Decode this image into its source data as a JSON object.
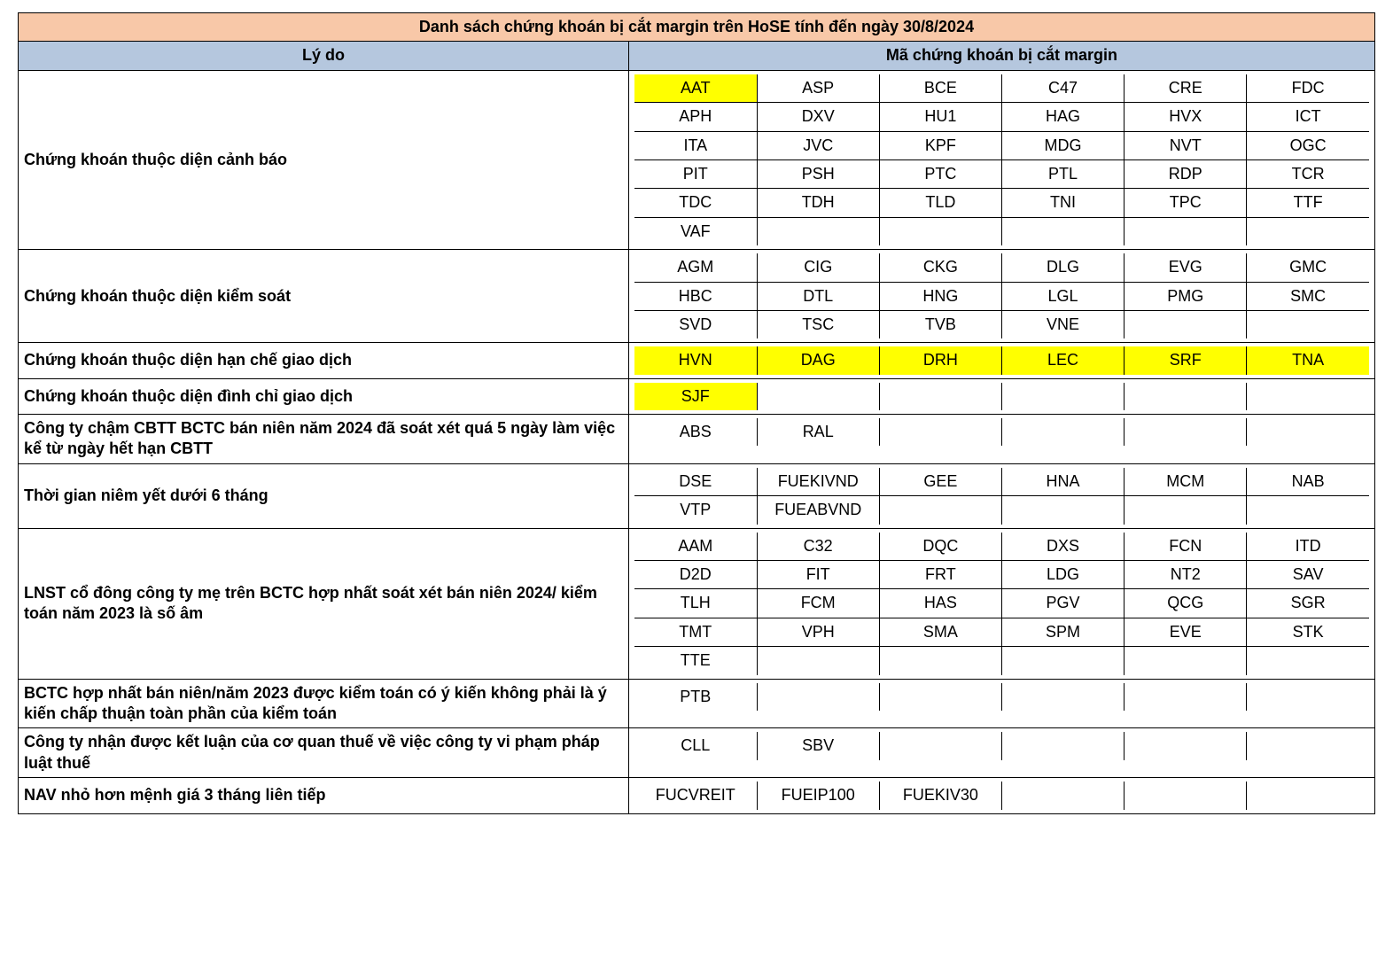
{
  "title": "Danh sách chứng khoán bị cắt margin trên HoSE tính đến ngày 30/8/2024",
  "headers": {
    "reason": "Lý do",
    "codes": "Mã chứng khoán bị cắt margin"
  },
  "colors": {
    "title_bg": "#f8c8a8",
    "header_bg": "#b5c7de",
    "highlight_bg": "#ffff00",
    "border": "#000000",
    "text": "#000000",
    "page_bg": "#ffffff"
  },
  "layout": {
    "columns_per_row": 6,
    "reason_col_width_pct": 45,
    "font_family": "Arial",
    "title_fontsize_pt": 22,
    "header_fontsize_pt": 20,
    "body_fontsize_pt": 18,
    "reason_fontweight": "bold",
    "code_fontweight": "normal",
    "highlight_fontweight": "bold"
  },
  "sections": [
    {
      "reason": "Chứng khoán thuộc diện cảnh báo",
      "rows": [
        [
          {
            "code": "AAT",
            "hl": true
          },
          {
            "code": "ASP"
          },
          {
            "code": "BCE"
          },
          {
            "code": "C47"
          },
          {
            "code": "CRE"
          },
          {
            "code": "FDC"
          }
        ],
        [
          {
            "code": "APH"
          },
          {
            "code": "DXV"
          },
          {
            "code": "HU1"
          },
          {
            "code": "HAG"
          },
          {
            "code": "HVX"
          },
          {
            "code": "ICT"
          }
        ],
        [
          {
            "code": "ITA"
          },
          {
            "code": "JVC"
          },
          {
            "code": "KPF"
          },
          {
            "code": "MDG"
          },
          {
            "code": "NVT"
          },
          {
            "code": "OGC"
          }
        ],
        [
          {
            "code": "PIT"
          },
          {
            "code": "PSH"
          },
          {
            "code": "PTC"
          },
          {
            "code": "PTL"
          },
          {
            "code": "RDP"
          },
          {
            "code": "TCR"
          }
        ],
        [
          {
            "code": "TDC"
          },
          {
            "code": "TDH"
          },
          {
            "code": "TLD"
          },
          {
            "code": "TNI"
          },
          {
            "code": "TPC"
          },
          {
            "code": "TTF"
          }
        ],
        [
          {
            "code": "VAF"
          },
          {
            "code": ""
          },
          {
            "code": ""
          },
          {
            "code": ""
          },
          {
            "code": ""
          },
          {
            "code": ""
          }
        ]
      ]
    },
    {
      "reason": "Chứng khoán thuộc diện kiểm soát",
      "rows": [
        [
          {
            "code": "AGM"
          },
          {
            "code": "CIG"
          },
          {
            "code": "CKG"
          },
          {
            "code": "DLG"
          },
          {
            "code": "EVG"
          },
          {
            "code": "GMC"
          }
        ],
        [
          {
            "code": "HBC"
          },
          {
            "code": "DTL"
          },
          {
            "code": "HNG"
          },
          {
            "code": "LGL"
          },
          {
            "code": "PMG"
          },
          {
            "code": "SMC"
          }
        ],
        [
          {
            "code": "SVD"
          },
          {
            "code": "TSC"
          },
          {
            "code": "TVB"
          },
          {
            "code": "VNE"
          },
          {
            "code": ""
          },
          {
            "code": ""
          }
        ]
      ]
    },
    {
      "reason": "Chứng khoán thuộc diện hạn chế giao dịch",
      "rows": [
        [
          {
            "code": "HVN",
            "hl": true
          },
          {
            "code": "DAG",
            "hl": true
          },
          {
            "code": "DRH",
            "hl": true
          },
          {
            "code": "LEC",
            "hl": true
          },
          {
            "code": "SRF",
            "hl": true
          },
          {
            "code": "TNA",
            "hl": true
          }
        ]
      ]
    },
    {
      "reason": "Chứng khoán thuộc diện đình chỉ giao dịch",
      "rows": [
        [
          {
            "code": "SJF",
            "hl": true
          },
          {
            "code": ""
          },
          {
            "code": ""
          },
          {
            "code": ""
          },
          {
            "code": ""
          },
          {
            "code": ""
          }
        ]
      ]
    },
    {
      "reason": "Công ty chậm CBTT BCTC bán niên năm 2024 đã soát xét quá 5 ngày làm việc kể từ ngày hết hạn CBTT",
      "rows": [
        [
          {
            "code": "ABS"
          },
          {
            "code": "RAL"
          },
          {
            "code": ""
          },
          {
            "code": ""
          },
          {
            "code": ""
          },
          {
            "code": ""
          }
        ]
      ]
    },
    {
      "reason": "Thời gian niêm yết dưới 6 tháng",
      "rows": [
        [
          {
            "code": "DSE"
          },
          {
            "code": "FUEKIVND"
          },
          {
            "code": "GEE"
          },
          {
            "code": "HNA"
          },
          {
            "code": "MCM"
          },
          {
            "code": "NAB"
          }
        ],
        [
          {
            "code": "VTP"
          },
          {
            "code": "FUEABVND"
          },
          {
            "code": ""
          },
          {
            "code": ""
          },
          {
            "code": ""
          },
          {
            "code": ""
          }
        ]
      ]
    },
    {
      "reason": "LNST cổ đông công ty mẹ trên BCTC hợp nhất soát xét bán niên 2024/ kiểm toán năm 2023 là số âm",
      "rows": [
        [
          {
            "code": "AAM"
          },
          {
            "code": "C32"
          },
          {
            "code": "DQC"
          },
          {
            "code": "DXS"
          },
          {
            "code": "FCN"
          },
          {
            "code": "ITD"
          }
        ],
        [
          {
            "code": "D2D"
          },
          {
            "code": "FIT"
          },
          {
            "code": "FRT"
          },
          {
            "code": "LDG"
          },
          {
            "code": "NT2"
          },
          {
            "code": "SAV"
          }
        ],
        [
          {
            "code": "TLH"
          },
          {
            "code": "FCM"
          },
          {
            "code": "HAS"
          },
          {
            "code": "PGV"
          },
          {
            "code": "QCG"
          },
          {
            "code": "SGR"
          }
        ],
        [
          {
            "code": "TMT"
          },
          {
            "code": "VPH"
          },
          {
            "code": "SMA"
          },
          {
            "code": "SPM"
          },
          {
            "code": "EVE"
          },
          {
            "code": "STK"
          }
        ],
        [
          {
            "code": "TTE"
          },
          {
            "code": ""
          },
          {
            "code": ""
          },
          {
            "code": ""
          },
          {
            "code": ""
          },
          {
            "code": ""
          }
        ]
      ]
    },
    {
      "reason": "BCTC hợp nhất bán niên/năm 2023 được kiểm toán có ý kiến không phải là ý kiến chấp thuận toàn phần của kiểm toán",
      "rows": [
        [
          {
            "code": "PTB"
          },
          {
            "code": ""
          },
          {
            "code": ""
          },
          {
            "code": ""
          },
          {
            "code": ""
          },
          {
            "code": ""
          }
        ]
      ]
    },
    {
      "reason": "Công ty nhận được kết luận của cơ quan thuế về việc công ty vi phạm pháp luật thuế",
      "rows": [
        [
          {
            "code": "CLL"
          },
          {
            "code": "SBV"
          },
          {
            "code": ""
          },
          {
            "code": ""
          },
          {
            "code": ""
          },
          {
            "code": ""
          }
        ]
      ]
    },
    {
      "reason": "NAV nhỏ hơn mệnh giá 3 tháng liên tiếp",
      "rows": [
        [
          {
            "code": "FUCVREIT"
          },
          {
            "code": "FUEIP100"
          },
          {
            "code": "FUEKIV30"
          },
          {
            "code": ""
          },
          {
            "code": ""
          },
          {
            "code": ""
          }
        ]
      ]
    }
  ]
}
